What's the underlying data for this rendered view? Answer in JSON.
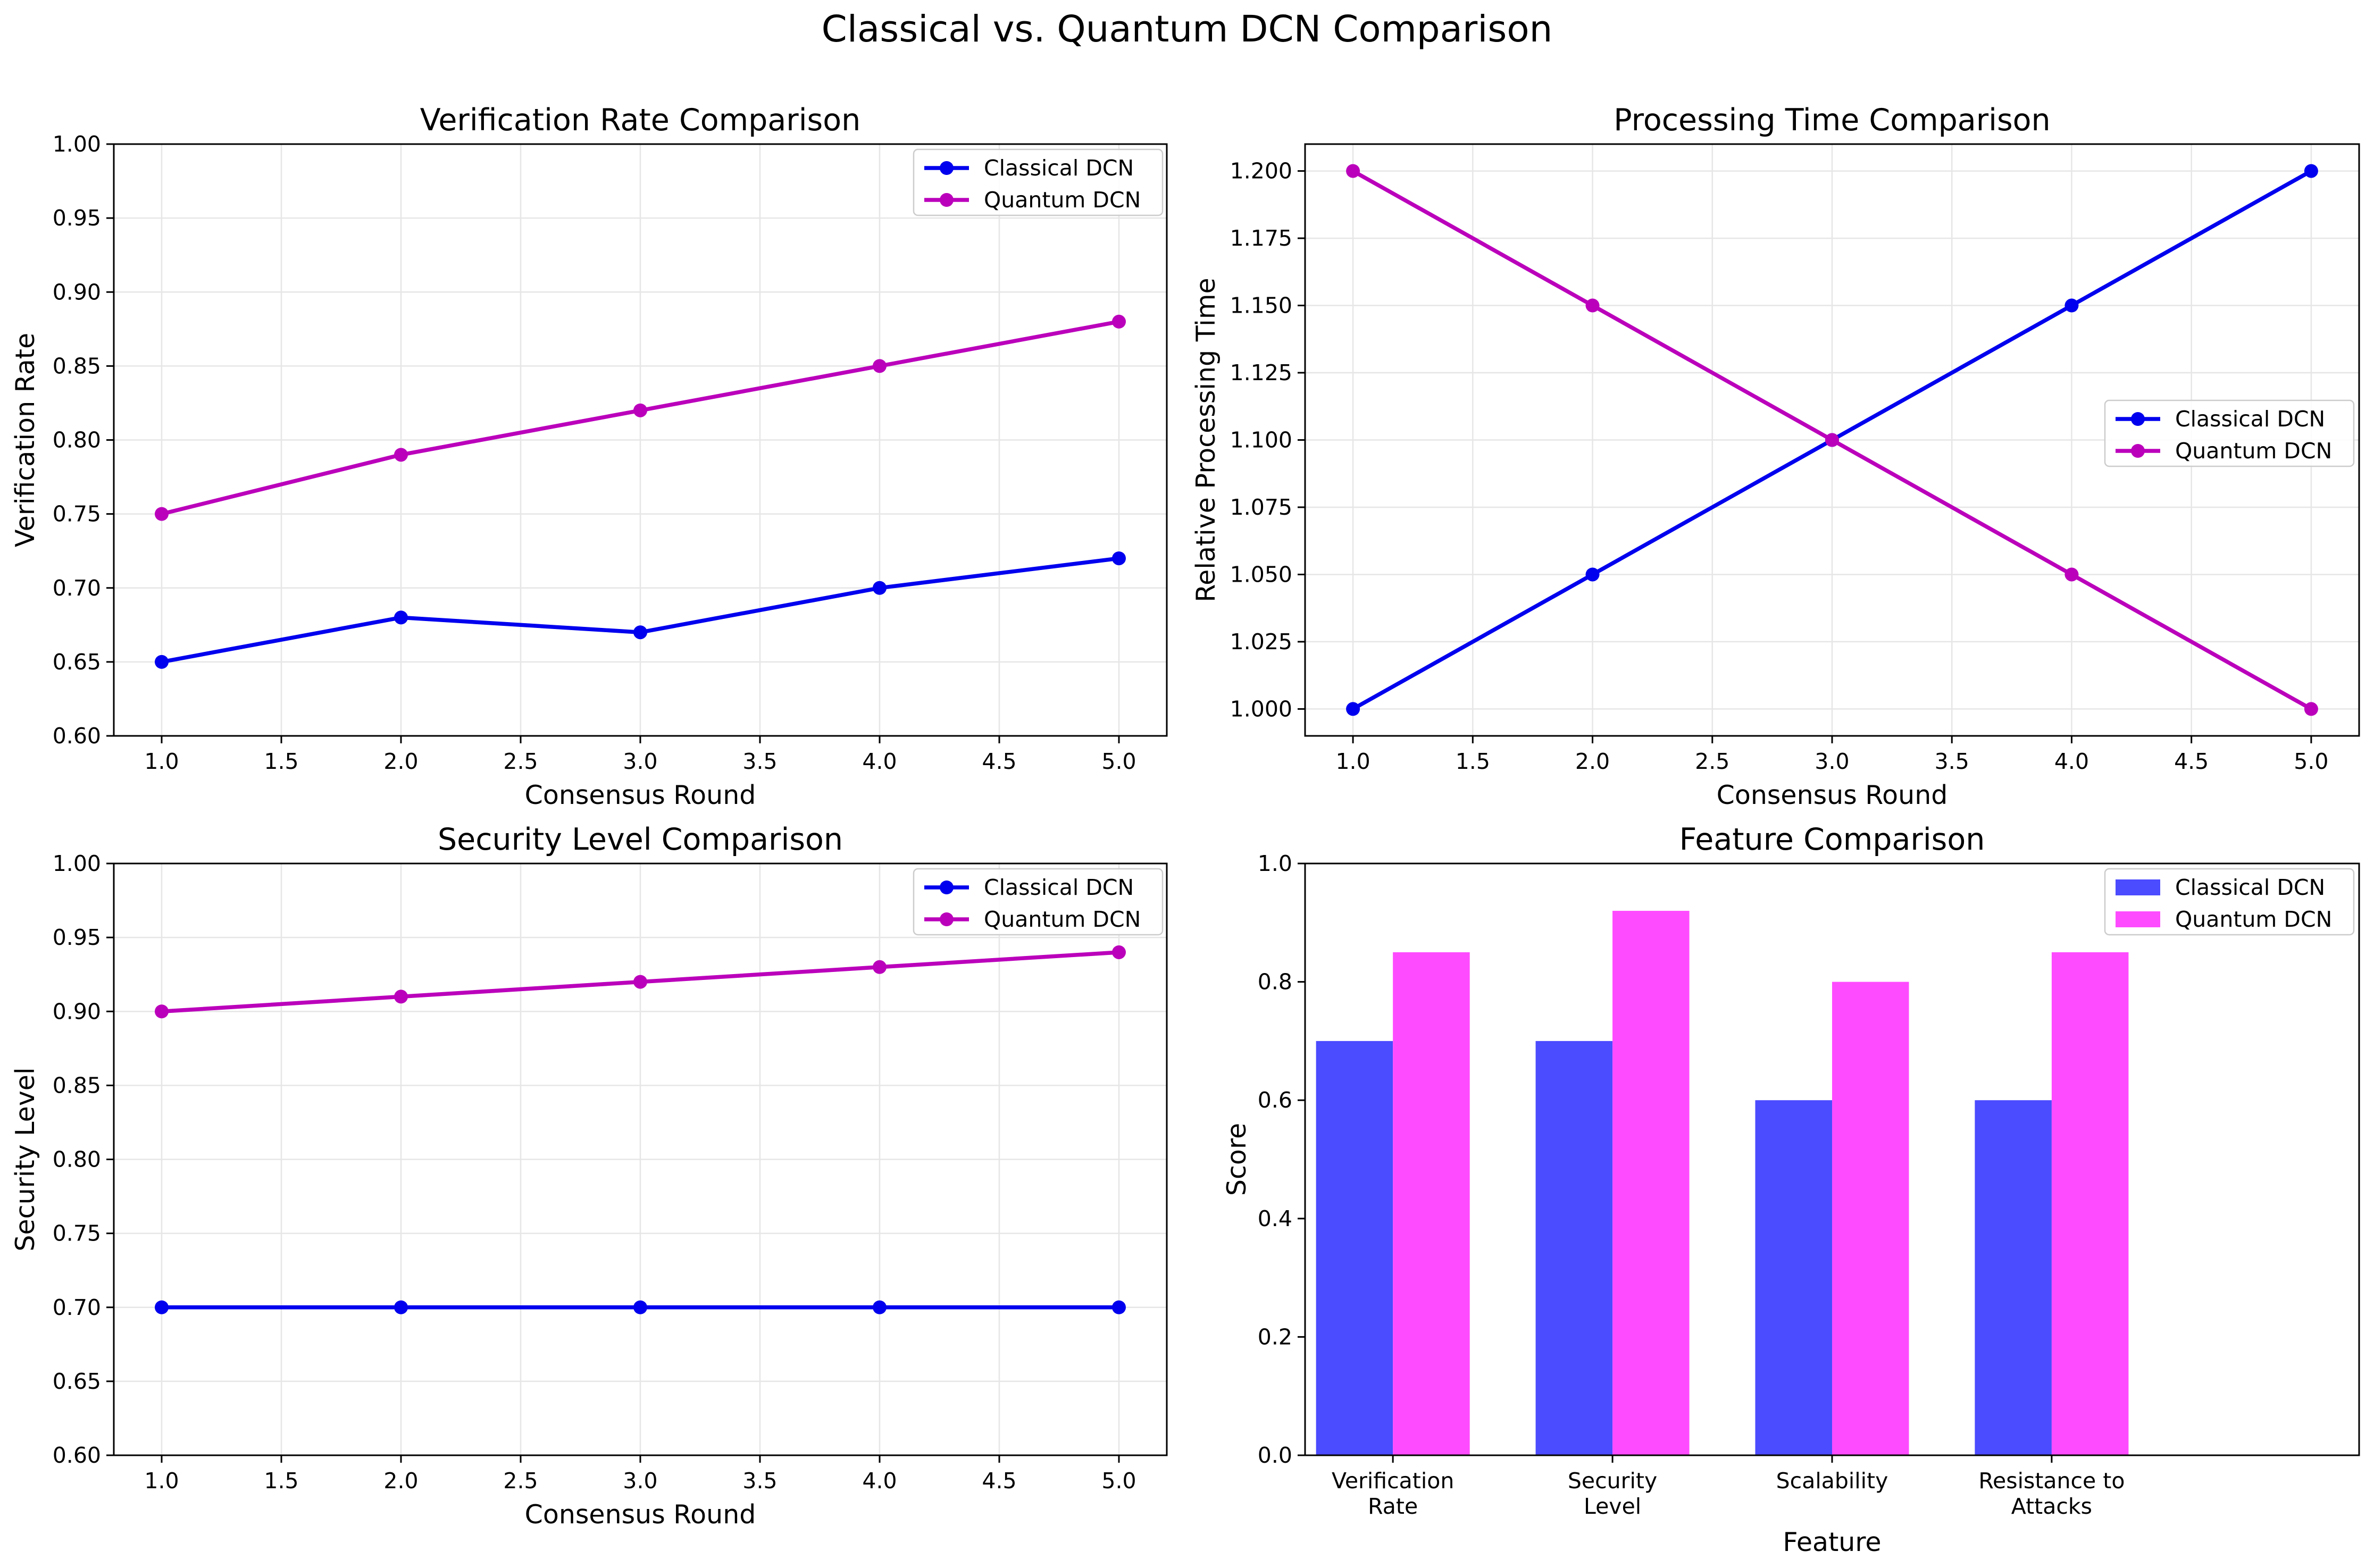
{
  "figure": {
    "title": "Classical vs. Quantum DCN Comparison"
  },
  "colors": {
    "classical_line": "#0000ee",
    "quantum_line": "#bb00bb",
    "classical_bar": "#4b4bff",
    "quantum_bar": "#ff4bff",
    "grid": "#e6e6e6"
  },
  "chart_data": [
    {
      "type": "line",
      "title": "Verification Rate Comparison",
      "xlabel": "Consensus Round",
      "ylabel": "Verification Rate",
      "x": [
        1,
        2,
        3,
        4,
        5
      ],
      "series": [
        {
          "name": "Classical DCN",
          "values": [
            0.65,
            0.68,
            0.67,
            0.7,
            0.72
          ]
        },
        {
          "name": "Quantum DCN",
          "values": [
            0.75,
            0.79,
            0.82,
            0.85,
            0.88
          ]
        }
      ],
      "xlim": [
        0.8,
        5.2
      ],
      "ylim": [
        0.6,
        1.0
      ],
      "xticks": [
        "1.0",
        "1.5",
        "2.0",
        "2.5",
        "3.0",
        "3.5",
        "4.0",
        "4.5",
        "5.0"
      ],
      "yticks": [
        "0.60",
        "0.65",
        "0.70",
        "0.75",
        "0.80",
        "0.85",
        "0.90",
        "0.95",
        "1.00"
      ],
      "grid": true,
      "legend": "upper right"
    },
    {
      "type": "line",
      "title": "Processing Time Comparison",
      "xlabel": "Consensus Round",
      "ylabel": "Relative Processing Time",
      "x": [
        1,
        2,
        3,
        4,
        5
      ],
      "series": [
        {
          "name": "Classical DCN",
          "values": [
            1.0,
            1.05,
            1.1,
            1.15,
            1.2
          ]
        },
        {
          "name": "Quantum DCN",
          "values": [
            1.2,
            1.15,
            1.1,
            1.05,
            1.0
          ]
        }
      ],
      "xlim": [
        0.8,
        5.2
      ],
      "ylim": [
        0.99,
        1.21
      ],
      "xticks": [
        "1.0",
        "1.5",
        "2.0",
        "2.5",
        "3.0",
        "3.5",
        "4.0",
        "4.5",
        "5.0"
      ],
      "yticks": [
        "1.000",
        "1.025",
        "1.050",
        "1.075",
        "1.100",
        "1.125",
        "1.150",
        "1.175",
        "1.200"
      ],
      "grid": true,
      "legend": "center right"
    },
    {
      "type": "line",
      "title": "Security Level Comparison",
      "xlabel": "Consensus Round",
      "ylabel": "Security Level",
      "x": [
        1,
        2,
        3,
        4,
        5
      ],
      "series": [
        {
          "name": "Classical DCN",
          "values": [
            0.7,
            0.7,
            0.7,
            0.7,
            0.7
          ]
        },
        {
          "name": "Quantum DCN",
          "values": [
            0.9,
            0.91,
            0.92,
            0.93,
            0.94
          ]
        }
      ],
      "xlim": [
        0.8,
        5.2
      ],
      "ylim": [
        0.6,
        1.0
      ],
      "xticks": [
        "1.0",
        "1.5",
        "2.0",
        "2.5",
        "3.0",
        "3.5",
        "4.0",
        "4.5",
        "5.0"
      ],
      "yticks": [
        "0.60",
        "0.65",
        "0.70",
        "0.75",
        "0.80",
        "0.85",
        "0.90",
        "0.95",
        "1.00"
      ],
      "grid": true,
      "legend": "upper right"
    },
    {
      "type": "bar",
      "title": "Feature Comparison",
      "xlabel": "Feature",
      "ylabel": "Score",
      "categories": [
        [
          "Verification",
          "Rate"
        ],
        [
          "Security",
          "Level"
        ],
        [
          "Scalability"
        ],
        [
          "Resistance to",
          "Attacks"
        ]
      ],
      "series": [
        {
          "name": "Classical DCN",
          "values": [
            0.7,
            0.7,
            0.6,
            0.6
          ]
        },
        {
          "name": "Quantum DCN",
          "values": [
            0.85,
            0.92,
            0.8,
            0.85
          ]
        }
      ],
      "ylim": [
        0.0,
        1.0
      ],
      "yticks": [
        "0.0",
        "0.2",
        "0.4",
        "0.6",
        "0.8",
        "1.0"
      ],
      "grid": false,
      "legend": "upper right"
    }
  ]
}
